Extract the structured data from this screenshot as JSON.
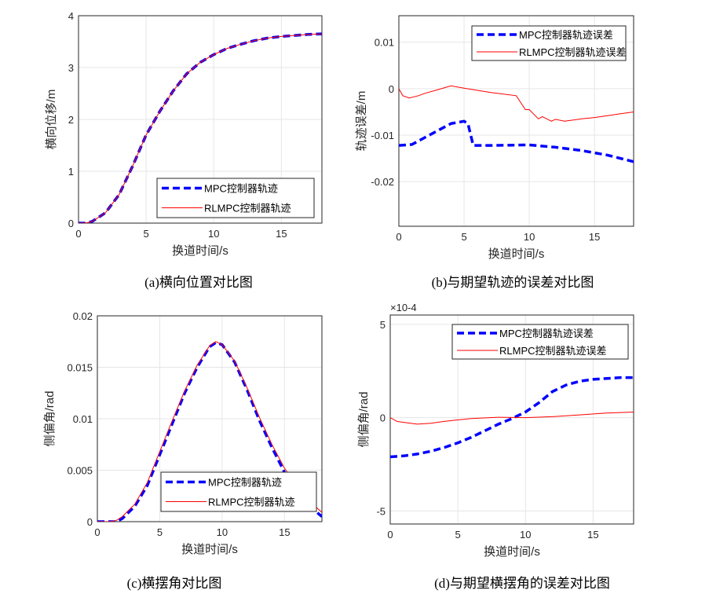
{
  "colors": {
    "mpc": "#0000ff",
    "rlmpc": "#ff0000",
    "grid": "#e6e6e6",
    "axis": "#262626"
  },
  "chart_data": [
    {
      "type": "line",
      "caption": "(a)横向位置对比图",
      "xlabel": "换道时间/s",
      "ylabel": "横向位移/m",
      "xlim": [
        0,
        18
      ],
      "ylim": [
        0,
        4
      ],
      "xticks": [
        0,
        5,
        10,
        15
      ],
      "xtick_labels": [
        "0",
        "5",
        "10",
        "15"
      ],
      "yticks": [
        0,
        1,
        2,
        3,
        4
      ],
      "ytick_labels": [
        "0",
        "1",
        "2",
        "3",
        "4"
      ],
      "grid": true,
      "legend": "bottom-right",
      "exponent": "",
      "series": [
        {
          "name": "MPC控制器轨迹",
          "style": "dashed",
          "x": [
            0,
            0.5,
            1,
            2,
            3,
            4,
            5,
            6,
            7,
            8,
            9,
            10,
            11,
            12,
            13,
            14,
            15,
            16,
            17,
            18
          ],
          "y": [
            0,
            0,
            0.03,
            0.2,
            0.55,
            1.1,
            1.7,
            2.15,
            2.55,
            2.88,
            3.1,
            3.25,
            3.37,
            3.45,
            3.52,
            3.57,
            3.6,
            3.62,
            3.64,
            3.65
          ]
        },
        {
          "name": "RLMPC控制器轨迹",
          "style": "solid",
          "x": [
            0,
            0.5,
            1,
            2,
            3,
            4,
            5,
            6,
            7,
            8,
            9,
            10,
            11,
            12,
            13,
            14,
            15,
            16,
            17,
            18
          ],
          "y": [
            0,
            0,
            0.03,
            0.2,
            0.55,
            1.1,
            1.7,
            2.15,
            2.55,
            2.88,
            3.1,
            3.25,
            3.37,
            3.45,
            3.52,
            3.57,
            3.6,
            3.62,
            3.64,
            3.65
          ]
        }
      ]
    },
    {
      "type": "line",
      "caption": "(b)与期望轨迹的误差对比图",
      "xlabel": "换道时间/s",
      "ylabel": "轨迹误差/m",
      "xlim": [
        0,
        18
      ],
      "ylim": [
        -0.0296,
        0.0157
      ],
      "xticks": [
        0,
        5,
        10,
        15
      ],
      "xtick_labels": [
        "0",
        "5",
        "10",
        "15"
      ],
      "yticks": [
        -0.02,
        -0.01,
        0,
        0.01
      ],
      "ytick_labels": [
        "-0.02",
        "-0.01",
        "0",
        "0.01"
      ],
      "grid": true,
      "legend": "top-right",
      "exponent": "",
      "series": [
        {
          "name": "MPC控制器轨迹误差",
          "style": "dashed",
          "x": [
            0,
            1,
            2,
            3,
            4,
            5,
            5.3,
            5.7,
            7,
            10,
            12,
            14,
            16,
            18
          ],
          "y": [
            -0.0122,
            -0.012,
            -0.0105,
            -0.009,
            -0.0075,
            -0.007,
            -0.0075,
            -0.0122,
            -0.0122,
            -0.0121,
            -0.0126,
            -0.0133,
            -0.0143,
            -0.0157
          ]
        },
        {
          "name": "RLMPC控制器轨迹误差",
          "style": "solid",
          "x": [
            0,
            0.3,
            0.8,
            1.5,
            2,
            3,
            4,
            5,
            7,
            9,
            9.7,
            10,
            10.7,
            11,
            11.7,
            12,
            12.7,
            13.5,
            14,
            15,
            16,
            17,
            18
          ],
          "y": [
            0,
            -0.0015,
            -0.002,
            -0.0015,
            -0.001,
            -0.0002,
            0.0006,
            0.0001,
            -0.0008,
            -0.0015,
            -0.0045,
            -0.0045,
            -0.0065,
            -0.006,
            -0.007,
            -0.0066,
            -0.007,
            -0.0067,
            -0.0065,
            -0.0062,
            -0.0058,
            -0.0054,
            -0.005
          ]
        }
      ]
    },
    {
      "type": "line",
      "caption": "(c)横摆角对比图",
      "xlabel": "换道时间/s",
      "ylabel": "侧偏角/rad",
      "xlim": [
        0,
        18
      ],
      "ylim": [
        0,
        0.02
      ],
      "xticks": [
        0,
        5,
        10,
        15
      ],
      "xtick_labels": [
        "0",
        "5",
        "10",
        "15"
      ],
      "yticks": [
        0,
        0.005,
        0.01,
        0.015,
        0.02
      ],
      "ytick_labels": [
        "0",
        "0.005",
        "0.01",
        "0.015",
        "0.02"
      ],
      "grid": true,
      "legend": "bottom-right",
      "exponent": "",
      "series": [
        {
          "name": "MPC控制器轨迹",
          "style": "dashed",
          "x": [
            0,
            1,
            1.5,
            2,
            3,
            4,
            5,
            6,
            7,
            8,
            9,
            9.5,
            10,
            11,
            12,
            13,
            14,
            15,
            16,
            17,
            18
          ],
          "y": [
            0,
            0,
            0,
            0.0003,
            0.0015,
            0.0035,
            0.0065,
            0.0095,
            0.0125,
            0.015,
            0.017,
            0.0174,
            0.0172,
            0.0155,
            0.0128,
            0.0098,
            0.0072,
            0.0048,
            0.003,
            0.0015,
            0.0005
          ]
        },
        {
          "name": "RLMPC控制器轨迹",
          "style": "solid",
          "x": [
            0,
            1,
            1.5,
            2,
            3,
            4,
            5,
            6,
            7,
            8,
            9,
            9.5,
            10,
            11,
            12,
            13,
            14,
            15,
            16,
            17,
            18
          ],
          "y": [
            0,
            0,
            0.0001,
            0.0005,
            0.0017,
            0.0038,
            0.0068,
            0.0098,
            0.0127,
            0.0152,
            0.0171,
            0.0175,
            0.0172,
            0.0156,
            0.013,
            0.0101,
            0.0075,
            0.0052,
            0.0035,
            0.002,
            0.0009
          ]
        }
      ]
    },
    {
      "type": "line",
      "caption": "(d)与期望横摆角的误差对比图",
      "xlabel": "换道时间/s",
      "ylabel": "侧偏角/rad",
      "xlim": [
        0,
        18
      ],
      "ylim": [
        -5.7,
        5.5
      ],
      "xticks": [
        0,
        5,
        10,
        15
      ],
      "xtick_labels": [
        "0",
        "5",
        "10",
        "15"
      ],
      "yticks": [
        -5,
        0,
        5
      ],
      "ytick_labels": [
        "-5",
        "0",
        "5"
      ],
      "grid": true,
      "legend": "top-right",
      "exponent": "×10-4",
      "series": [
        {
          "name": "MPC控制器轨迹误差",
          "style": "dashed",
          "x": [
            0,
            1,
            2,
            3,
            4,
            5,
            6,
            7,
            8,
            9,
            10,
            11,
            12,
            13,
            14,
            15,
            16,
            17,
            18
          ],
          "y": [
            -2.1,
            -2.05,
            -1.95,
            -1.8,
            -1.6,
            -1.35,
            -1.05,
            -0.7,
            -0.35,
            -0.05,
            0.3,
            0.8,
            1.4,
            1.75,
            1.95,
            2.05,
            2.1,
            2.15,
            2.15
          ]
        },
        {
          "name": "RLMPC控制器轨迹误差",
          "style": "solid",
          "x": [
            0,
            0.5,
            1,
            2,
            3,
            4,
            5,
            6,
            8,
            10,
            12,
            14,
            16,
            18
          ],
          "y": [
            0,
            -0.2,
            -0.25,
            -0.35,
            -0.3,
            -0.2,
            -0.12,
            -0.05,
            0.02,
            0,
            0.05,
            0.15,
            0.25,
            0.3
          ]
        }
      ]
    }
  ]
}
